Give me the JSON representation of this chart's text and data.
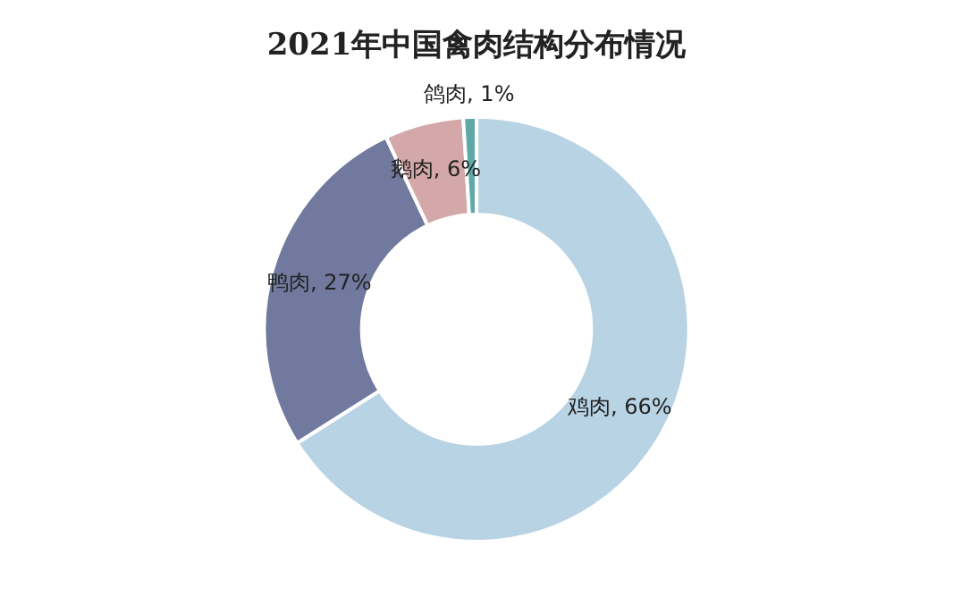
{
  "chart_data": {
    "type": "donut",
    "title": "2021年中国禽肉结构分布情况",
    "categories": [
      "鸡肉",
      "鸭肉",
      "鹅肉",
      "鸽肉"
    ],
    "values": [
      66,
      27,
      6,
      1
    ],
    "colors": [
      "#b8d3e4",
      "#717a9e",
      "#d4a8a8",
      "#5fa8a8"
    ],
    "value_labels": [
      ", 66%",
      ", 27%",
      ", 6%",
      ", 1%"
    ],
    "legend": false
  }
}
